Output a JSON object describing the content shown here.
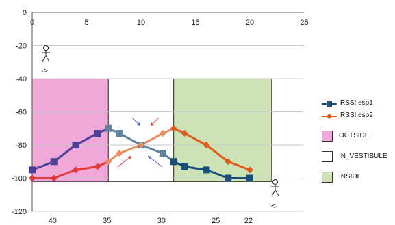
{
  "chart_data": {
    "type": "line",
    "x_top_ticks": [
      "0",
      "5",
      "10",
      "15",
      "20",
      "25"
    ],
    "x_bottom_ticks": [
      {
        "label": "40",
        "x": 2
      },
      {
        "label": "35",
        "x": 7
      },
      {
        "label": "30",
        "x": 12
      },
      {
        "label": "25",
        "x": 17
      },
      {
        "label": "22",
        "x": 20
      }
    ],
    "xlim": [
      0,
      25
    ],
    "ylim": [
      -120,
      0
    ],
    "y_ticks": [
      0,
      -20,
      -40,
      -60,
      -80,
      -100,
      -120
    ],
    "grid": "horizontal",
    "regions": [
      {
        "name": "OUTSIDE",
        "x": [
          0,
          7
        ],
        "y": [
          -102,
          -40
        ],
        "color": "#f0a8d8"
      },
      {
        "name": "IN_VESTIBULE",
        "x": [
          7,
          13
        ],
        "y": [
          -102,
          -40
        ],
        "color": "#ffffff"
      },
      {
        "name": "INSIDE",
        "x": [
          13,
          22
        ],
        "y": [
          -102,
          -40
        ],
        "color": "#cde3b5"
      }
    ],
    "series": [
      {
        "name": "RSSI esp1",
        "marker": "square",
        "color": "#1a4f7a",
        "points": [
          [
            0,
            -95
          ],
          [
            2,
            -90
          ],
          [
            4,
            -80
          ],
          [
            6,
            -73
          ],
          [
            7,
            -70
          ],
          [
            8,
            -73
          ],
          [
            10,
            -80
          ],
          [
            12,
            -85
          ],
          [
            13,
            -90
          ],
          [
            14,
            -93
          ],
          [
            16,
            -95
          ],
          [
            18,
            -100
          ],
          [
            20,
            -100
          ]
        ]
      },
      {
        "name": "RSSI esp2",
        "marker": "diamond",
        "color": "#e05a1a",
        "points": [
          [
            0,
            -100
          ],
          [
            2,
            -100
          ],
          [
            4,
            -95
          ],
          [
            6,
            -93
          ],
          [
            7,
            -90
          ],
          [
            8,
            -85
          ],
          [
            10,
            -80
          ],
          [
            12,
            -73
          ],
          [
            13,
            -70
          ],
          [
            14,
            -73
          ],
          [
            16,
            -80
          ],
          [
            18,
            -90
          ],
          [
            20,
            -95
          ]
        ]
      }
    ],
    "annotations": [
      {
        "type": "person-icon",
        "arrow_label": "->",
        "near": [
          1,
          -30
        ]
      },
      {
        "type": "person-icon",
        "arrow_label": "<-",
        "near": [
          22,
          -110
        ]
      }
    ]
  }
}
